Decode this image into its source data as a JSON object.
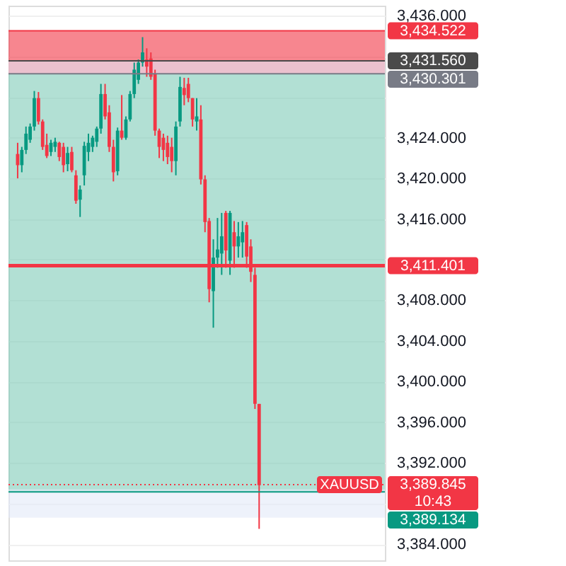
{
  "chart_data": {
    "type": "candlestick",
    "categories": [
      null,
      null,
      null,
      null,
      null,
      null,
      null,
      null,
      null,
      null,
      null,
      null,
      null,
      null,
      null,
      null,
      null,
      null,
      null,
      null,
      null,
      null,
      null,
      null,
      null,
      null,
      null,
      null,
      null,
      null,
      null,
      null,
      null,
      null,
      null,
      null,
      null,
      null,
      null,
      null,
      null,
      null,
      null,
      null,
      null,
      null,
      null,
      null,
      null,
      null,
      null,
      null,
      null,
      null,
      null,
      null,
      null,
      null,
      null,
      null,
      null,
      null,
      null,
      null,
      null,
      null,
      null,
      null,
      null,
      null,
      null,
      null,
      null,
      null,
      null,
      null,
      null,
      null,
      null,
      null,
      null,
      null,
      null,
      null,
      null,
      null,
      null
    ],
    "ohlc": [
      [
        3422.4,
        3423.5,
        3420.0,
        3421.3
      ],
      [
        3421.3,
        3423.1,
        3420.6,
        3422.8
      ],
      [
        3422.8,
        3425.1,
        3422.4,
        3424.4
      ],
      [
        3423.8,
        3425.4,
        3423.5,
        3425.1
      ],
      [
        3425.1,
        3428.6,
        3424.7,
        3427.9
      ],
      [
        3427.9,
        3428.5,
        3425.3,
        3425.6
      ],
      [
        3425.6,
        3425.8,
        3422.8,
        3423.1
      ],
      [
        3423.3,
        3424.4,
        3422.0,
        3422.2
      ],
      [
        3422.6,
        3423.8,
        3422.2,
        3423.5
      ],
      [
        3423.1,
        3424.0,
        3422.6,
        3423.6
      ],
      [
        3423.5,
        3423.6,
        3421.7,
        3422.1
      ],
      [
        3423.1,
        3423.5,
        3420.6,
        3421.3
      ],
      [
        3421.4,
        3423.1,
        3420.7,
        3422.5
      ],
      [
        3422.6,
        3423.1,
        3420.6,
        3420.8
      ],
      [
        3420.3,
        3420.8,
        3417.5,
        3417.8
      ],
      [
        3417.9,
        3419.3,
        3416.2,
        3418.9
      ],
      [
        3420.3,
        3423.6,
        3419.3,
        3423.2
      ],
      [
        3422.6,
        3424.4,
        3421.7,
        3423.5
      ],
      [
        3423.1,
        3424.2,
        3422.6,
        3424.0
      ],
      [
        3423.6,
        3425.1,
        3423.1,
        3424.9
      ],
      [
        3424.9,
        3429.3,
        3424.4,
        3428.3
      ],
      [
        3428.3,
        3429.3,
        3425.8,
        3426.1
      ],
      [
        3426.5,
        3427.2,
        3422.6,
        3423.1
      ],
      [
        3423.1,
        3423.8,
        3419.7,
        3420.6
      ],
      [
        3420.7,
        3425.0,
        3420.3,
        3424.7
      ],
      [
        3424.7,
        3428.2,
        3423.8,
        3424.0
      ],
      [
        3424.0,
        3426.1,
        3423.8,
        3425.8
      ],
      [
        3425.8,
        3428.6,
        3425.6,
        3428.3
      ],
      [
        3428.3,
        3431.4,
        3427.9,
        3430.7
      ],
      [
        3429.7,
        3431.7,
        3429.3,
        3431.4
      ],
      [
        3431.4,
        3433.9,
        3431.0,
        3432.4
      ],
      [
        3431.7,
        3432.8,
        3430.0,
        3431.0
      ],
      [
        3431.8,
        3432.4,
        3429.7,
        3430.0
      ],
      [
        3430.3,
        3430.7,
        3424.2,
        3424.7
      ],
      [
        3424.7,
        3424.9,
        3422.0,
        3423.1
      ],
      [
        3424.0,
        3424.4,
        3421.7,
        3422.8
      ],
      [
        3423.5,
        3424.2,
        3421.4,
        3422.1
      ],
      [
        3423.1,
        3424.0,
        3420.6,
        3421.7
      ],
      [
        3421.7,
        3425.6,
        3420.3,
        3425.1
      ],
      [
        3425.6,
        3430.0,
        3425.1,
        3429.0
      ],
      [
        3428.9,
        3429.9,
        3427.2,
        3428.2
      ],
      [
        3429.3,
        3429.9,
        3427.5,
        3427.9
      ],
      [
        3427.9,
        3427.9,
        3425.1,
        3425.8
      ],
      [
        3425.6,
        3427.9,
        3424.7,
        3426.1
      ],
      [
        3425.8,
        3427.2,
        3419.4,
        3419.9
      ],
      [
        3419.9,
        3420.3,
        3414.7,
        3415.7
      ],
      [
        3415.8,
        3416.1,
        3407.8,
        3409.1
      ],
      [
        3408.9,
        3414.0,
        3405.3,
        3412.2
      ],
      [
        3412.2,
        3416.1,
        3411.2,
        3413.0
      ],
      [
        3412.6,
        3416.6,
        3410.5,
        3414.3
      ],
      [
        3416.6,
        3416.8,
        3411.2,
        3412.9
      ],
      [
        3411.9,
        3416.8,
        3410.5,
        3416.6
      ],
      [
        3414.7,
        3415.8,
        3411.2,
        3413.3
      ],
      [
        3413.3,
        3415.7,
        3412.2,
        3414.3
      ],
      [
        3413.7,
        3415.8,
        3412.2,
        3414.7
      ],
      [
        3415.4,
        3415.7,
        3411.2,
        3412.3
      ],
      [
        3413.3,
        3414.0,
        3409.8,
        3410.8
      ],
      [
        3410.5,
        3411.2,
        3397.3,
        3397.8
      ],
      [
        3397.8,
        3397.8,
        3385.5,
        3389.8
      ],
      null,
      null,
      null,
      null,
      null,
      null,
      null,
      null,
      null,
      null,
      null,
      null,
      null,
      null,
      null,
      null,
      null,
      null,
      null,
      null,
      null,
      null,
      null,
      null,
      null,
      null,
      null,
      null
    ],
    "colors": [
      "#f23645",
      "#089981",
      "#089981",
      "#089981",
      "#089981",
      "#f23645",
      "#f23645",
      "#f23645",
      "#089981",
      "#089981",
      "#f23645",
      "#f23645",
      "#089981",
      "#f23645",
      "#f23645",
      "#089981",
      "#089981",
      "#089981",
      "#089981",
      "#089981",
      "#089981",
      "#f23645",
      "#f23645",
      "#f23645",
      "#089981",
      "#f23645",
      "#089981",
      "#089981",
      "#089981",
      "#089981",
      "#089981",
      "#f23645",
      "#f23645",
      "#f23645",
      "#f23645",
      "#f23645",
      "#f23645",
      "#f23645",
      "#089981",
      "#089981",
      "#f23645",
      "#f23645",
      "#f23645",
      "#089981",
      "#f23645",
      "#f23645",
      "#f23645",
      "#089981",
      "#089981",
      "#089981",
      "#f23645",
      "#089981",
      "#f23645",
      "#089981",
      "#089981",
      "#f23645",
      "#f23645",
      "#f23645",
      "#f23645",
      null,
      null,
      null,
      null,
      null,
      null,
      null,
      null,
      null,
      null,
      null,
      null,
      null,
      null,
      null,
      null,
      null,
      null,
      null,
      null,
      null,
      null,
      null,
      null,
      null,
      null,
      null,
      null
    ],
    "ylim": [
      3382.4,
      3437
    ],
    "yticks": [
      {
        "value": 3384,
        "label": "3,384.000"
      },
      {
        "value": 3388,
        "label": null
      },
      {
        "value": 3392,
        "label": "3,392.000"
      },
      {
        "value": 3396,
        "label": "3,396.000"
      },
      {
        "value": 3400,
        "label": "3,400.000"
      },
      {
        "value": 3404,
        "label": "3,404.000"
      },
      {
        "value": 3408,
        "label": "3,408.000"
      },
      {
        "value": 3412,
        "label": null
      },
      {
        "value": 3416,
        "label": "3,416.000"
      },
      {
        "value": 3420,
        "label": "3,420.000"
      },
      {
        "value": 3424,
        "label": "3,424.000"
      },
      {
        "value": 3428,
        "label": null
      },
      {
        "value": 3432,
        "label": null
      },
      {
        "value": 3436,
        "label": "3,436.000"
      }
    ],
    "grid": true,
    "tick_labels": "y",
    "bands": [
      {
        "axis": "y",
        "from": 3389.134,
        "to": 3430.301,
        "color": "#7ecbb8"
      },
      {
        "axis": "y",
        "from": 3430.301,
        "to": 3434.522,
        "color": "#f23645"
      },
      {
        "axis": "y",
        "from": 3430.301,
        "to": 3431.56,
        "color": "#e3e9f8"
      },
      {
        "axis": "y",
        "from": 3386.6,
        "to": 3389.4,
        "color": "#e3e9f8"
      }
    ],
    "ref_lines": [
      {
        "axis": "y",
        "value": 3434.522,
        "label": "3,434.522",
        "color": "#f23645"
      },
      {
        "axis": "y",
        "value": 3431.56,
        "label": "3,431.560",
        "color": "#4a4a4a"
      },
      {
        "axis": "y",
        "value": 3430.301,
        "label": "3,430.301",
        "color": "#787b86"
      },
      {
        "axis": "y",
        "value": 3411.401,
        "label": "3,411.401",
        "color": "#f23645"
      },
      {
        "axis": "y",
        "value": 3389.845,
        "label": "3,389.845",
        "color": "#f23645",
        "line_style": "dotted"
      },
      {
        "axis": "y",
        "value": 3389.134,
        "label": "3,389.134",
        "color": "#089981"
      }
    ],
    "annotations": [
      {
        "text": "XAUUSD",
        "y": 3389.845
      },
      "10:43"
    ]
  }
}
